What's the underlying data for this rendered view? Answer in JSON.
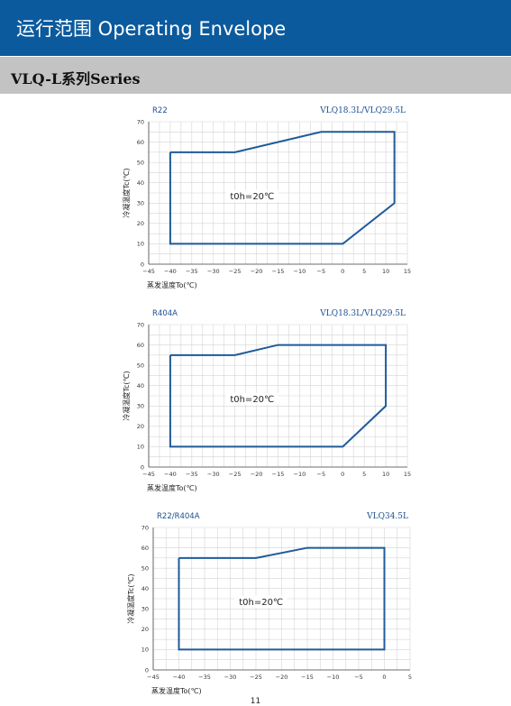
{
  "header": {
    "title": "运行范围  Operating Envelope"
  },
  "section": {
    "title": "VLQ-L系列Series"
  },
  "colors": {
    "header_bg": "#0b5a9d",
    "subheader_bg": "#c3c3c3",
    "envelope_line": "#1f5b9a"
  },
  "chart_data": [
    {
      "type": "line",
      "title": "",
      "refrigerant": "R22",
      "model": "VLQ18.3L/VLQ29.5L",
      "xlabel": "蒸发温度To(℃)",
      "ylabel": "冷凝温度Tc(℃)",
      "xlim": [
        -45,
        15
      ],
      "ylim": [
        0,
        70
      ],
      "xticks": [
        -45,
        -40,
        -35,
        -30,
        -25,
        -20,
        -15,
        -10,
        -5,
        0,
        5,
        10,
        15
      ],
      "yticks": [
        0,
        10,
        20,
        30,
        40,
        50,
        60,
        70
      ],
      "grid": true,
      "annotation": "t0h=20℃",
      "series": [
        {
          "x": [
            -40,
            -25,
            -5,
            12,
            12,
            0,
            -40,
            -40
          ],
          "y": [
            55,
            55,
            65,
            65,
            30,
            10,
            10,
            55
          ]
        }
      ]
    },
    {
      "type": "line",
      "title": "",
      "refrigerant": "R404A",
      "model": "VLQ18.3L/VLQ29.5L",
      "xlabel": "蒸发温度To(℃)",
      "ylabel": "冷凝温度Tc(℃)",
      "xlim": [
        -45,
        15
      ],
      "ylim": [
        0,
        70
      ],
      "xticks": [
        -45,
        -40,
        -35,
        -30,
        -25,
        -20,
        -15,
        -10,
        -5,
        0,
        5,
        10,
        15
      ],
      "yticks": [
        0,
        10,
        20,
        30,
        40,
        50,
        60,
        70
      ],
      "grid": true,
      "annotation": "t0h=20℃",
      "series": [
        {
          "x": [
            -40,
            -25,
            -15,
            10,
            10,
            0,
            -40,
            -40
          ],
          "y": [
            55,
            55,
            60,
            60,
            30,
            10,
            10,
            55
          ]
        }
      ]
    },
    {
      "type": "line",
      "title": "",
      "refrigerant": "R22/R404A",
      "model": "VLQ34.5L",
      "xlabel": "蒸发温度To(℃)",
      "ylabel": "冷凝温度Tc(℃)",
      "xlim": [
        -45,
        5
      ],
      "ylim": [
        0,
        70
      ],
      "xticks": [
        -45,
        -40,
        -35,
        -30,
        -25,
        -20,
        -15,
        -10,
        -5,
        0,
        5
      ],
      "yticks": [
        0,
        10,
        20,
        30,
        40,
        50,
        60,
        70
      ],
      "grid": true,
      "annotation": "t0h=20℃",
      "series": [
        {
          "x": [
            -40,
            -25,
            -15,
            0,
            0,
            -40,
            -40
          ],
          "y": [
            55,
            55,
            60,
            60,
            10,
            10,
            55
          ]
        }
      ]
    }
  ],
  "page_number": "11"
}
